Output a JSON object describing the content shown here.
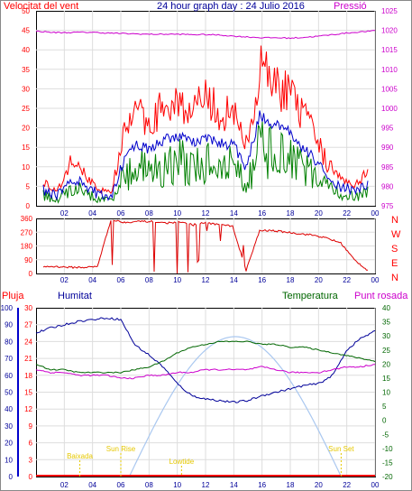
{
  "title": "24 hour graph day : 24 Julio 2016",
  "colors": {
    "wind": "#ff0000",
    "gust": "#ff0000",
    "avg_wind": "#0000cc",
    "temp_wind": "#008000",
    "pressure": "#cc00cc",
    "humidity": "#000099",
    "temperature": "#006600",
    "dew": "#cc00cc",
    "rain": "#ff0000",
    "sun": "#aac8f0",
    "event": "#e6c800",
    "grid": "#dddddd"
  },
  "panel1": {
    "left_label": "Velocitat del vent",
    "right_label": "Pressió",
    "left_ticks": [
      "0",
      "5",
      "10",
      "15",
      "20",
      "25",
      "30",
      "35",
      "40",
      "45",
      "50"
    ],
    "right_ticks": [
      "975",
      "980",
      "985",
      "990",
      "995",
      "1000",
      "1005",
      "1010",
      "1015",
      "1020",
      "1025"
    ],
    "x_ticks": [
      "02",
      "04",
      "06",
      "08",
      "10",
      "12",
      "14",
      "16",
      "18",
      "20",
      "22",
      "00"
    ]
  },
  "panel2": {
    "left_ticks": [
      "0",
      "90",
      "180",
      "270",
      "360"
    ],
    "right_letters": [
      "N",
      "W",
      "S",
      "E",
      "N"
    ],
    "x_ticks": [
      "02",
      "04",
      "06",
      "08",
      "10",
      "12",
      "14",
      "16",
      "18",
      "20",
      "22",
      "00"
    ]
  },
  "panel3": {
    "label_rain": "Pluja",
    "label_humidity": "Humitat",
    "label_temperature": "Temperatura",
    "label_dew": "Punt rosada",
    "humidity_ticks": [
      "0",
      "10",
      "20",
      "30",
      "40",
      "50",
      "60",
      "70",
      "80",
      "90",
      "100"
    ],
    "rain_ticks": [
      "0",
      "3",
      "6",
      "9",
      "12",
      "15",
      "18",
      "21",
      "24",
      "27",
      "30"
    ],
    "temp_ticks": [
      "-20",
      "-15",
      "-10",
      "-5",
      "0",
      "5",
      "10",
      "15",
      "20",
      "25",
      "30",
      "35",
      "40"
    ],
    "x_ticks": [
      "02",
      "04",
      "06",
      "08",
      "10",
      "12",
      "14",
      "16",
      "18",
      "20",
      "22",
      "00"
    ],
    "events": [
      "Baixada",
      "Sun Rise",
      "Lowtide",
      "Sun Set"
    ]
  },
  "chart_data": [
    {
      "type": "line",
      "title": "24 hour graph day : 24 Julio 2016",
      "x_hours": [
        0,
        1,
        2,
        3,
        4,
        5,
        6,
        7,
        8,
        9,
        10,
        11,
        12,
        13,
        14,
        15,
        16,
        17,
        18,
        19,
        20,
        21,
        22,
        23,
        24
      ],
      "series": [
        {
          "name": "Velocitat del vent",
          "values": [
            6,
            3,
            10,
            8,
            4,
            3,
            17,
            22,
            20,
            24,
            25,
            22,
            25,
            22,
            22,
            14,
            32,
            29,
            27,
            22,
            17,
            10,
            7,
            5,
            8
          ]
        },
        {
          "name": "Pressió",
          "axis": "right",
          "values": [
            1019.8,
            1019.5,
            1019.4,
            1019.5,
            1019.5,
            1019.3,
            1019.2,
            1019.1,
            1019.0,
            1019.0,
            1019.0,
            1018.9,
            1018.9,
            1018.8,
            1018.5,
            1018.3,
            1018.1,
            1018.1,
            1018.0,
            1018.2,
            1018.5,
            1018.9,
            1019.3,
            1019.6,
            1019.9
          ]
        }
      ],
      "ylim_left": [
        0,
        50
      ],
      "ylim_right": [
        975,
        1025
      ]
    },
    {
      "type": "scatter",
      "title": "",
      "x_hours": [
        0,
        1,
        2,
        3,
        4,
        5,
        6,
        7,
        8,
        9,
        10,
        11,
        12,
        13,
        14,
        15,
        16,
        17,
        18,
        19,
        20,
        21,
        22,
        23,
        24
      ],
      "series": [
        {
          "values": [
            45,
            45,
            40,
            40,
            45,
            350,
            335,
            340,
            340,
            330,
            335,
            320,
            330,
            320,
            310,
            20,
            280,
            280,
            270,
            260,
            250,
            230,
            200,
            90,
            20
          ]
        }
      ],
      "ylim": [
        0,
        360
      ]
    },
    {
      "type": "line",
      "title": "",
      "x_hours": [
        0,
        1,
        2,
        3,
        4,
        5,
        6,
        7,
        8,
        9,
        10,
        11,
        12,
        13,
        14,
        15,
        16,
        17,
        18,
        19,
        20,
        21,
        22,
        23,
        24
      ],
      "series": [
        {
          "name": "Humitat",
          "values": [
            85,
            88,
            90,
            92,
            93,
            94,
            93,
            78,
            72,
            65,
            55,
            48,
            46,
            45,
            44,
            45,
            48,
            50,
            52,
            54,
            55,
            60,
            75,
            82,
            86
          ]
        },
        {
          "name": "Temperatura",
          "values": [
            20,
            18,
            18,
            17,
            17,
            17,
            17,
            18,
            19,
            21,
            24,
            26,
            27,
            28,
            28,
            28,
            27,
            27,
            26,
            26,
            25,
            24,
            23,
            22,
            21
          ]
        },
        {
          "name": "Punt rosada",
          "values": [
            18,
            17,
            17,
            16,
            16,
            16,
            15,
            15,
            16,
            16,
            17,
            17,
            18,
            18,
            18,
            18,
            19,
            18,
            17,
            17,
            17,
            18,
            19,
            19,
            20
          ]
        },
        {
          "name": "Pluja",
          "values": [
            0,
            0,
            0,
            0,
            0,
            0,
            0,
            0,
            0,
            0,
            0,
            0,
            0,
            0,
            0,
            0,
            0,
            0,
            0,
            0,
            0,
            0,
            0,
            0,
            0
          ]
        }
      ],
      "ylim_humidity": [
        0,
        100
      ],
      "ylim_rain": [
        0,
        30
      ],
      "ylim_temp": [
        -20,
        40
      ]
    }
  ]
}
